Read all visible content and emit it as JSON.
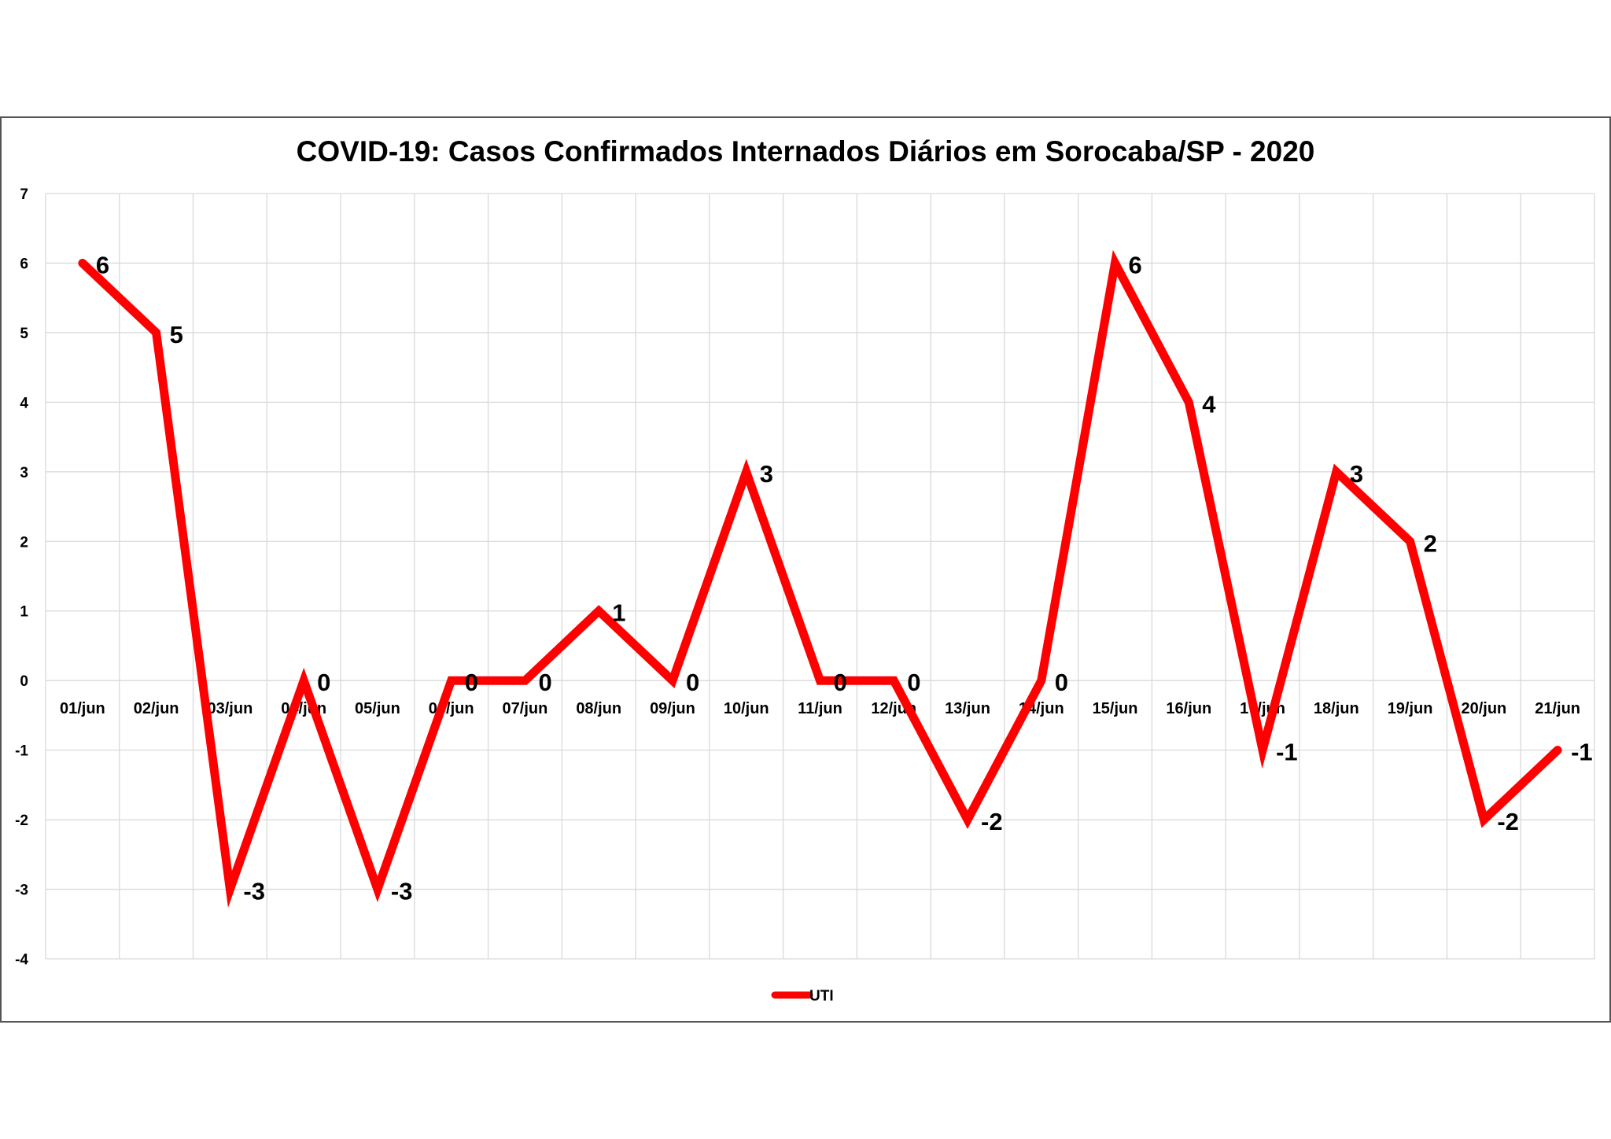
{
  "chart_data": {
    "type": "line",
    "title": "COVID-19: Casos Confirmados Internados Diários em Sorocaba/SP - 2020",
    "categories": [
      "01/jun",
      "02/jun",
      "03/jun",
      "04/jun",
      "05/jun",
      "06/jun",
      "07/jun",
      "08/jun",
      "09/jun",
      "10/jun",
      "11/jun",
      "12/jun",
      "13/jun",
      "14/jun",
      "15/jun",
      "16/jun",
      "17/jun",
      "18/jun",
      "19/jun",
      "20/jun",
      "21/jun"
    ],
    "series": [
      {
        "name": "UTI",
        "color": "#ff0000",
        "values": [
          6,
          5,
          -3,
          0,
          -3,
          0,
          0,
          1,
          0,
          3,
          0,
          0,
          -2,
          0,
          6,
          4,
          -1,
          3,
          2,
          -2,
          -1
        ]
      }
    ],
    "ylim": [
      -4,
      7
    ],
    "yticks": [
      7,
      6,
      5,
      4,
      3,
      2,
      1,
      0,
      -1,
      -2,
      -3,
      -4
    ],
    "grid": true,
    "data_labels": true,
    "legend_position": "bottom",
    "xlabel": "",
    "ylabel": ""
  }
}
